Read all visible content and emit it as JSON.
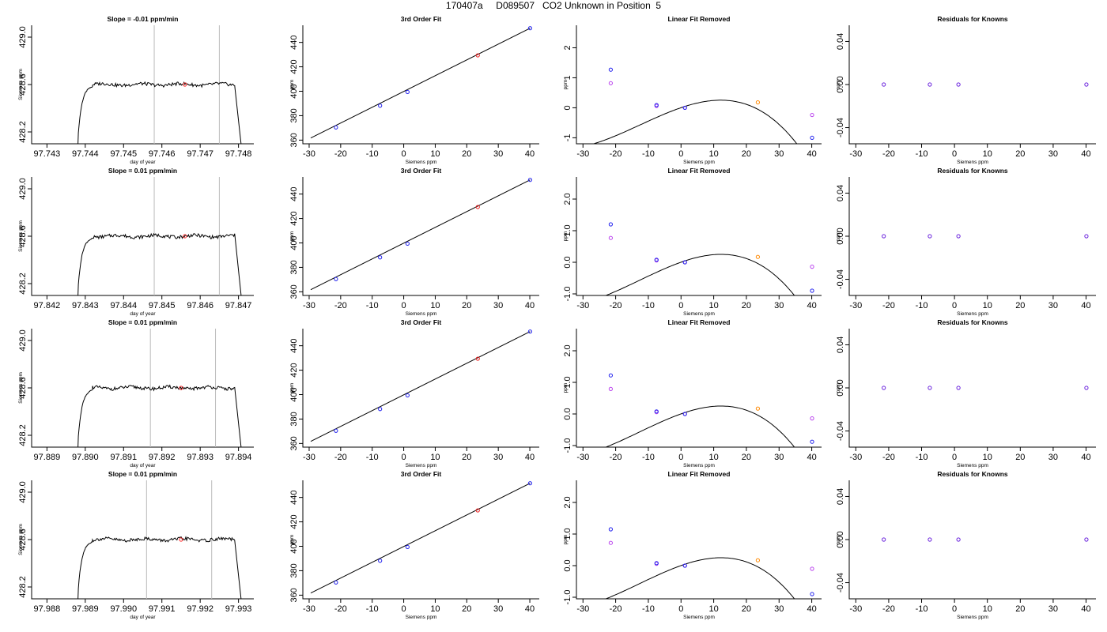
{
  "page": {
    "title": "170407a     D089507   CO2 Unknown in Position  5"
  },
  "colors": {
    "line": "#000000",
    "marker_point": "#ff3030",
    "vline": "#bbbbbb",
    "known_blue": "#2222ee",
    "unknown_red": "#ee2020",
    "orange": "#ff8800",
    "magenta": "#bb44ee",
    "residual": "#6a22dd"
  },
  "chart_data": [
    {
      "panel": "timeseries",
      "type": "line",
      "row": 0,
      "title": "Slope =  -0.01  ppm/min",
      "xlabel": "day of year",
      "ylabel": "Siemens ppm",
      "xlim": [
        97.7426,
        97.7484
      ],
      "ylim": [
        428.1,
        429.1
      ],
      "xticks": [
        97.743,
        97.744,
        97.745,
        97.746,
        97.747,
        97.748
      ],
      "xtick_labels": [
        "97.743",
        "97.744",
        "97.745",
        "97.746",
        "97.747",
        "97.748"
      ],
      "yticks": [
        428.2,
        428.6,
        429.0
      ],
      "ytick_labels": [
        "428.2",
        "428.6",
        "429.0"
      ],
      "rise_start": 97.7438,
      "plateau_start": 97.7441,
      "plateau_end": 97.7479,
      "fall_end": 97.7481,
      "plateau_level": 428.6,
      "vlines": [
        97.7458,
        97.7475
      ],
      "marker": [
        97.7466,
        428.6
      ]
    },
    {
      "panel": "fit",
      "type": "line",
      "row": 0,
      "title": "3rd Order Fit",
      "xlabel": "Siemens ppm",
      "ylabel": "ppm",
      "xlim": [
        -32,
        43
      ],
      "ylim": [
        357,
        454
      ],
      "xticks": [
        -30,
        -20,
        -10,
        0,
        10,
        20,
        30,
        40
      ],
      "xtick_labels": [
        "-30",
        "-20",
        "-10",
        "0",
        "10",
        "20",
        "30",
        "40"
      ],
      "yticks": [
        360,
        380,
        400,
        420,
        440
      ],
      "ytick_labels": [
        "360",
        "380",
        "400",
        "420",
        "440"
      ],
      "line": [
        [
          -29.5,
          361.7
        ],
        [
          40.1,
          451.6
        ]
      ],
      "knowns": [
        [
          -21.5,
          370.4
        ],
        [
          -7.5,
          388.2
        ],
        [
          1.2,
          399.4
        ],
        [
          40.1,
          451.6
        ]
      ],
      "unknown": [
        [
          23.5,
          429.4
        ]
      ]
    },
    {
      "panel": "linear_removed",
      "type": "scatter",
      "row": 0,
      "title": "Linear Fit Removed",
      "xlabel": "Siemens ppm",
      "ylabel": "ppm",
      "xlim": [
        -32,
        43
      ],
      "ylim": [
        -1.2,
        2.75
      ],
      "xticks": [
        -30,
        -20,
        -10,
        0,
        10,
        20,
        30,
        40
      ],
      "xtick_labels": [
        "-30",
        "-20",
        "-10",
        "0",
        "10",
        "20",
        "30",
        "40"
      ],
      "yticks": [
        -1,
        0,
        1,
        2
      ],
      "ytick_labels": [
        "-1",
        "0",
        "1",
        "2"
      ],
      "curve_coeffs": [
        0.00253,
        0.0372,
        -0.00103,
        -2.76e-05
      ],
      "knowns": [
        [
          -21.5,
          1.27
        ],
        [
          -7.5,
          0.09
        ],
        [
          1.2,
          0.0
        ],
        [
          40.1,
          -1.0
        ]
      ],
      "orange": [
        [
          23.5,
          0.18
        ]
      ],
      "magenta": [
        [
          -21.5,
          0.82
        ],
        [
          -7.5,
          0.06
        ],
        [
          1.2,
          0.0
        ],
        [
          40.1,
          -0.24
        ]
      ]
    },
    {
      "panel": "residuals",
      "type": "scatter",
      "row": 0,
      "title": "Residuals for Knowns",
      "xlabel": "Siemens ppm",
      "ylabel": "ppm",
      "xlim": [
        -32,
        43
      ],
      "ylim": [
        -0.055,
        0.055
      ],
      "xticks": [
        -30,
        -20,
        -10,
        0,
        10,
        20,
        30,
        40
      ],
      "xtick_labels": [
        "-30",
        "-20",
        "-10",
        "0",
        "10",
        "20",
        "30",
        "40"
      ],
      "yticks": [
        -0.04,
        0.0,
        0.04
      ],
      "ytick_labels": [
        "-0.04",
        "0.00",
        "0.04"
      ],
      "points": [
        [
          -21.5,
          0.0
        ],
        [
          -7.5,
          0.0
        ],
        [
          1.2,
          0.0
        ],
        [
          40.1,
          0.0
        ]
      ]
    },
    {
      "panel": "timeseries",
      "type": "line",
      "row": 1,
      "title": "Slope =  0.01  ppm/min",
      "xlabel": "day of year",
      "ylabel": "Siemens ppm",
      "xlim": [
        97.8416,
        97.8474
      ],
      "ylim": [
        428.1,
        429.1
      ],
      "xticks": [
        97.842,
        97.843,
        97.844,
        97.845,
        97.846,
        97.847
      ],
      "xtick_labels": [
        "97.842",
        "97.843",
        "97.844",
        "97.845",
        "97.846",
        "97.847"
      ],
      "yticks": [
        428.2,
        428.6,
        429.0
      ],
      "ytick_labels": [
        "428.2",
        "428.6",
        "429.0"
      ],
      "rise_start": 97.8428,
      "plateau_start": 97.8431,
      "plateau_end": 97.8469,
      "fall_end": 97.8471,
      "plateau_level": 428.6,
      "vlines": [
        97.8448,
        97.8465
      ],
      "marker": [
        97.8456,
        428.6
      ]
    },
    {
      "panel": "fit",
      "type": "line",
      "row": 1,
      "title": "3rd Order Fit",
      "xlabel": "Siemens ppm",
      "ylabel": "ppm",
      "xlim": [
        -32,
        43
      ],
      "ylim": [
        357,
        454
      ],
      "xticks": [
        -30,
        -20,
        -10,
        0,
        10,
        20,
        30,
        40
      ],
      "xtick_labels": [
        "-30",
        "-20",
        "-10",
        "0",
        "10",
        "20",
        "30",
        "40"
      ],
      "yticks": [
        360,
        380,
        400,
        420,
        440
      ],
      "ytick_labels": [
        "360",
        "380",
        "400",
        "420",
        "440"
      ],
      "line": [
        [
          -29.5,
          361.7
        ],
        [
          40.1,
          451.6
        ]
      ],
      "knowns": [
        [
          -21.5,
          370.4
        ],
        [
          -7.5,
          388.2
        ],
        [
          1.2,
          399.4
        ],
        [
          40.1,
          451.6
        ]
      ],
      "unknown": [
        [
          23.5,
          429.4
        ]
      ]
    },
    {
      "panel": "linear_removed",
      "type": "scatter",
      "row": 1,
      "title": "Linear Fit Removed",
      "xlabel": "Siemens ppm",
      "ylabel": "ppm",
      "xlim": [
        -32,
        43
      ],
      "ylim": [
        -1.05,
        2.7
      ],
      "xticks": [
        -30,
        -20,
        -10,
        0,
        10,
        20,
        30,
        40
      ],
      "xtick_labels": [
        "-30",
        "-20",
        "-10",
        "0",
        "10",
        "20",
        "30",
        "40"
      ],
      "yticks": [
        -1.0,
        0.0,
        1.0,
        2.0
      ],
      "ytick_labels": [
        "-1.0",
        "0.0",
        "1.0",
        "2.0"
      ],
      "curve_coeffs": [
        0.0025,
        0.0366,
        -0.00101,
        -2.65e-05
      ],
      "knowns": [
        [
          -21.5,
          1.2
        ],
        [
          -7.5,
          0.08
        ],
        [
          1.2,
          0.0
        ],
        [
          40.1,
          -0.9
        ]
      ],
      "orange": [
        [
          23.5,
          0.17
        ]
      ],
      "magenta": [
        [
          -21.5,
          0.77
        ],
        [
          -7.5,
          0.06
        ],
        [
          1.2,
          0.0
        ],
        [
          40.1,
          -0.14
        ]
      ]
    },
    {
      "panel": "residuals",
      "type": "scatter",
      "row": 1,
      "title": "Residuals for Knowns",
      "xlabel": "Siemens ppm",
      "ylabel": "ppm",
      "xlim": [
        -32,
        43
      ],
      "ylim": [
        -0.055,
        0.055
      ],
      "xticks": [
        -30,
        -20,
        -10,
        0,
        10,
        20,
        30,
        40
      ],
      "xtick_labels": [
        "-30",
        "-20",
        "-10",
        "0",
        "10",
        "20",
        "30",
        "40"
      ],
      "yticks": [
        -0.04,
        0.0,
        0.04
      ],
      "ytick_labels": [
        "-0.04",
        "0.00",
        "0.04"
      ],
      "points": [
        [
          -21.5,
          0.0
        ],
        [
          -7.5,
          0.0
        ],
        [
          1.2,
          0.0
        ],
        [
          40.1,
          0.0
        ]
      ]
    },
    {
      "panel": "timeseries",
      "type": "line",
      "row": 2,
      "title": "Slope =  0.01  ppm/min",
      "xlabel": "day of year",
      "ylabel": "Siemens ppm",
      "xlim": [
        97.8886,
        97.8944
      ],
      "ylim": [
        428.1,
        429.1
      ],
      "xticks": [
        97.889,
        97.89,
        97.891,
        97.892,
        97.893,
        97.894
      ],
      "xtick_labels": [
        "97.889",
        "97.890",
        "97.891",
        "97.892",
        "97.893",
        "97.894"
      ],
      "yticks": [
        428.2,
        428.6,
        429.0
      ],
      "ytick_labels": [
        "428.2",
        "428.6",
        "429.0"
      ],
      "rise_start": 97.8898,
      "plateau_start": 97.8901,
      "plateau_end": 97.8939,
      "fall_end": 97.8941,
      "plateau_level": 428.6,
      "vlines": [
        97.8917,
        97.8934
      ],
      "marker": [
        97.8925,
        428.6
      ]
    },
    {
      "panel": "fit",
      "type": "line",
      "row": 2,
      "title": "3rd Order Fit",
      "xlabel": "Siemens ppm",
      "ylabel": "ppm",
      "xlim": [
        -32,
        43
      ],
      "ylim": [
        357,
        454
      ],
      "xticks": [
        -30,
        -20,
        -10,
        0,
        10,
        20,
        30,
        40
      ],
      "xtick_labels": [
        "-30",
        "-20",
        "-10",
        "0",
        "10",
        "20",
        "30",
        "40"
      ],
      "yticks": [
        360,
        380,
        400,
        420,
        440
      ],
      "ytick_labels": [
        "360",
        "380",
        "400",
        "420",
        "440"
      ],
      "line": [
        [
          -29.5,
          361.7
        ],
        [
          40.1,
          451.6
        ]
      ],
      "knowns": [
        [
          -21.5,
          370.4
        ],
        [
          -7.5,
          388.2
        ],
        [
          1.2,
          399.4
        ],
        [
          40.1,
          451.6
        ]
      ],
      "unknown": [
        [
          23.5,
          429.4
        ]
      ]
    },
    {
      "panel": "linear_removed",
      "type": "scatter",
      "row": 2,
      "title": "Linear Fit Removed",
      "xlabel": "Siemens ppm",
      "ylabel": "ppm",
      "xlim": [
        -32,
        43
      ],
      "ylim": [
        -1.05,
        2.7
      ],
      "xticks": [
        -30,
        -20,
        -10,
        0,
        10,
        20,
        30,
        40
      ],
      "xtick_labels": [
        "-30",
        "-20",
        "-10",
        "0",
        "10",
        "20",
        "30",
        "40"
      ],
      "yticks": [
        -1.0,
        0.0,
        1.0,
        2.0
      ],
      "ytick_labels": [
        "-1.0",
        "0.0",
        "1.0",
        "2.0"
      ],
      "curve_coeffs": [
        0.0025,
        0.0366,
        -0.00101,
        -2.65e-05
      ],
      "knowns": [
        [
          -21.5,
          1.22
        ],
        [
          -7.5,
          0.08
        ],
        [
          1.2,
          0.0
        ],
        [
          40.1,
          -0.88
        ]
      ],
      "orange": [
        [
          23.5,
          0.17
        ]
      ],
      "magenta": [
        [
          -21.5,
          0.79
        ],
        [
          -7.5,
          0.06
        ],
        [
          1.2,
          0.0
        ],
        [
          40.1,
          -0.14
        ]
      ]
    },
    {
      "panel": "residuals",
      "type": "scatter",
      "row": 2,
      "title": "Residuals for Knowns",
      "xlabel": "Siemens ppm",
      "ylabel": "ppm",
      "xlim": [
        -32,
        43
      ],
      "ylim": [
        -0.055,
        0.055
      ],
      "xticks": [
        -30,
        -20,
        -10,
        0,
        10,
        20,
        30,
        40
      ],
      "xtick_labels": [
        "-30",
        "-20",
        "-10",
        "0",
        "10",
        "20",
        "30",
        "40"
      ],
      "yticks": [
        -0.04,
        0.0,
        0.04
      ],
      "ytick_labels": [
        "-0.04",
        "0.00",
        "0.04"
      ],
      "points": [
        [
          -21.5,
          0.0
        ],
        [
          -7.5,
          0.0
        ],
        [
          1.2,
          0.0
        ],
        [
          40.1,
          0.0
        ]
      ]
    },
    {
      "panel": "timeseries",
      "type": "line",
      "row": 3,
      "title": "Slope =  0.01  ppm/min",
      "xlabel": "day of year",
      "ylabel": "Siemens ppm",
      "xlim": [
        97.9876,
        97.9934
      ],
      "ylim": [
        428.1,
        429.1
      ],
      "xticks": [
        97.988,
        97.989,
        97.99,
        97.991,
        97.992,
        97.993
      ],
      "xtick_labels": [
        "97.988",
        "97.989",
        "97.990",
        "97.991",
        "97.992",
        "97.993"
      ],
      "yticks": [
        428.2,
        428.6,
        429.0
      ],
      "ytick_labels": [
        "428.2",
        "428.6",
        "429.0"
      ],
      "rise_start": 97.9888,
      "plateau_start": 97.9891,
      "plateau_end": 97.9929,
      "fall_end": 97.9931,
      "plateau_level": 428.6,
      "vlines": [
        97.9906,
        97.9923
      ],
      "marker": [
        97.9915,
        428.6
      ]
    },
    {
      "panel": "fit",
      "type": "line",
      "row": 3,
      "title": "3rd Order Fit",
      "xlabel": "Siemens ppm",
      "ylabel": "ppm",
      "xlim": [
        -32,
        43
      ],
      "ylim": [
        357,
        454
      ],
      "xticks": [
        -30,
        -20,
        -10,
        0,
        10,
        20,
        30,
        40
      ],
      "xtick_labels": [
        "-30",
        "-20",
        "-10",
        "0",
        "10",
        "20",
        "30",
        "40"
      ],
      "yticks": [
        360,
        380,
        400,
        420,
        440
      ],
      "ytick_labels": [
        "360",
        "380",
        "400",
        "420",
        "440"
      ],
      "line": [
        [
          -29.5,
          361.7
        ],
        [
          40.1,
          451.6
        ]
      ],
      "knowns": [
        [
          -21.5,
          370.4
        ],
        [
          -7.5,
          388.2
        ],
        [
          1.2,
          399.4
        ],
        [
          40.1,
          451.6
        ]
      ],
      "unknown": [
        [
          23.5,
          429.4
        ]
      ]
    },
    {
      "panel": "linear_removed",
      "type": "scatter",
      "row": 3,
      "title": "Linear Fit Removed",
      "xlabel": "Siemens ppm",
      "ylabel": "ppm",
      "xlim": [
        -32,
        43
      ],
      "ylim": [
        -1.05,
        2.7
      ],
      "xticks": [
        -30,
        -20,
        -10,
        0,
        10,
        20,
        30,
        40
      ],
      "xtick_labels": [
        "-30",
        "-20",
        "-10",
        "0",
        "10",
        "20",
        "30",
        "40"
      ],
      "yticks": [
        -1.0,
        0.0,
        1.0,
        2.0
      ],
      "ytick_labels": [
        "-1.0",
        "0.0",
        "1.0",
        "2.0"
      ],
      "curve_coeffs": [
        0.0025,
        0.0366,
        -0.00101,
        -2.65e-05
      ],
      "knowns": [
        [
          -21.5,
          1.15
        ],
        [
          -7.5,
          0.08
        ],
        [
          1.2,
          0.0
        ],
        [
          40.1,
          -0.9
        ]
      ],
      "orange": [
        [
          23.5,
          0.17
        ]
      ],
      "magenta": [
        [
          -21.5,
          0.72
        ],
        [
          -7.5,
          0.06
        ],
        [
          1.2,
          0.0
        ],
        [
          40.1,
          -0.1
        ]
      ]
    },
    {
      "panel": "residuals",
      "type": "scatter",
      "row": 3,
      "title": "Residuals for Knowns",
      "xlabel": "Siemens ppm",
      "ylabel": "ppm",
      "xlim": [
        -32,
        43
      ],
      "ylim": [
        -0.055,
        0.055
      ],
      "xticks": [
        -30,
        -20,
        -10,
        0,
        10,
        20,
        30,
        40
      ],
      "xtick_labels": [
        "-30",
        "-20",
        "-10",
        "0",
        "10",
        "20",
        "30",
        "40"
      ],
      "yticks": [
        -0.04,
        0.0,
        0.04
      ],
      "ytick_labels": [
        "-0.04",
        "0.00",
        "0.04"
      ],
      "points": [
        [
          -21.5,
          0.0
        ],
        [
          -7.5,
          0.0
        ],
        [
          1.2,
          0.0
        ],
        [
          40.1,
          0.0
        ]
      ]
    }
  ]
}
